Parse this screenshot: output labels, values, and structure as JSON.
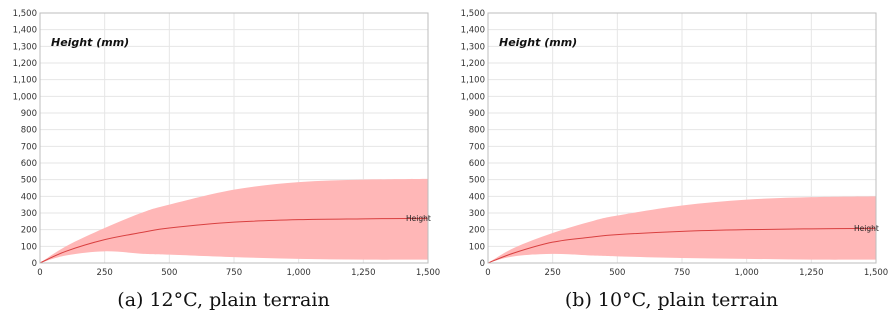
{
  "chart_data": [
    {
      "type": "area",
      "title": "Height (mm)",
      "caption": "(a) 12°C, plain terrain",
      "xlim": [
        0,
        1500
      ],
      "ylim": [
        0,
        1500
      ],
      "x_ticks": [
        "0",
        "250",
        "500",
        "750",
        "1,000",
        "1,250",
        "1,500"
      ],
      "y_ticks": [
        "0",
        "100",
        "200",
        "300",
        "400",
        "500",
        "600",
        "700",
        "800",
        "900",
        "1,000",
        "1,100",
        "1,200",
        "1,300",
        "1,400",
        "1,500"
      ],
      "grid": true,
      "colors": {
        "band": "#ffb7b7",
        "line": "#d94040"
      },
      "series": [
        {
          "name": "Height",
          "x": [
            0,
            100,
            250,
            400,
            500,
            750,
            1000,
            1250,
            1500
          ],
          "mean": [
            0,
            70,
            140,
            185,
            210,
            245,
            260,
            265,
            268
          ],
          "upper": [
            0,
            100,
            210,
            305,
            350,
            440,
            485,
            500,
            505
          ],
          "lower": [
            0,
            45,
            70,
            55,
            50,
            35,
            25,
            20,
            20
          ]
        }
      ]
    },
    {
      "type": "area",
      "title": "Height (mm)",
      "caption": "(b) 10°C, plain terrain",
      "xlim": [
        0,
        1500
      ],
      "ylim": [
        0,
        1500
      ],
      "x_ticks": [
        "0",
        "250",
        "500",
        "750",
        "1,000",
        "1,250",
        "1,500"
      ],
      "y_ticks": [
        "0",
        "100",
        "200",
        "300",
        "400",
        "500",
        "600",
        "700",
        "800",
        "900",
        "1,000",
        "1,100",
        "1,200",
        "1,300",
        "1,400",
        "1,500"
      ],
      "grid": true,
      "colors": {
        "band": "#ffb7b7",
        "line": "#d94040"
      },
      "series": [
        {
          "name": "Height",
          "x": [
            0,
            100,
            250,
            400,
            500,
            750,
            1000,
            1250,
            1500
          ],
          "mean": [
            0,
            60,
            125,
            155,
            170,
            190,
            200,
            205,
            208
          ],
          "upper": [
            0,
            90,
            180,
            250,
            285,
            345,
            380,
            395,
            400
          ],
          "lower": [
            0,
            40,
            55,
            45,
            40,
            30,
            25,
            20,
            20
          ]
        }
      ]
    }
  ]
}
